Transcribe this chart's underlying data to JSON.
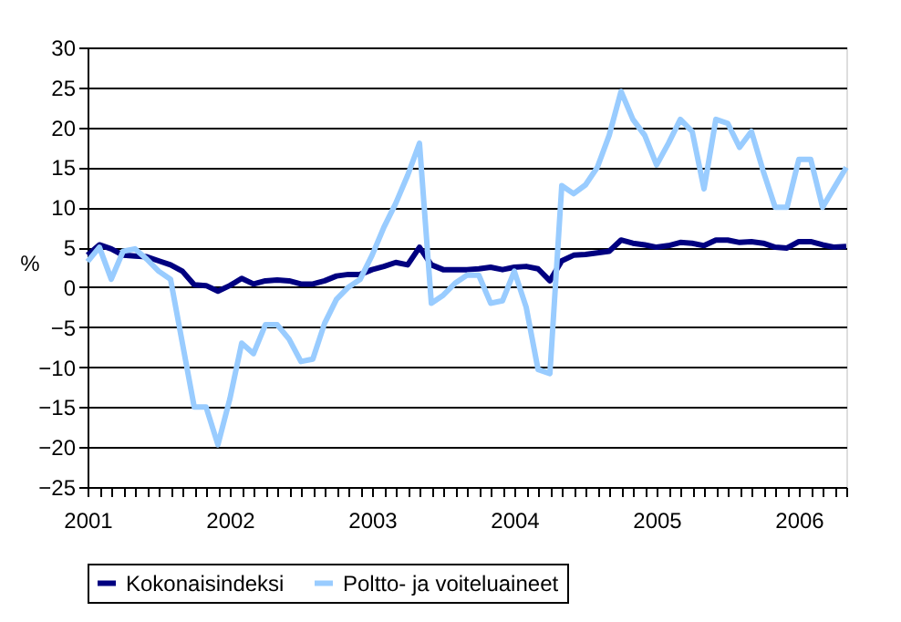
{
  "chart_data": {
    "type": "line",
    "ylabel": "%",
    "categories": [
      "2001",
      null,
      null,
      null,
      null,
      null,
      null,
      null,
      null,
      null,
      null,
      null,
      "2002",
      null,
      null,
      null,
      null,
      null,
      null,
      null,
      null,
      null,
      null,
      null,
      "2003",
      null,
      null,
      null,
      null,
      null,
      null,
      null,
      null,
      null,
      null,
      null,
      "2004",
      null,
      null,
      null,
      null,
      null,
      null,
      null,
      null,
      null,
      null,
      null,
      "2005",
      null,
      null,
      null,
      null,
      null,
      null,
      null,
      null,
      null,
      null,
      null,
      "2006",
      null,
      null,
      null,
      null
    ],
    "series": [
      {
        "name": "Kokonaisindeksi",
        "color": "#000080",
        "values": [
          4,
          5.3,
          4.8,
          4,
          3.9,
          3.8,
          3.3,
          2.8,
          2,
          0.3,
          0.2,
          -0.5,
          0.2,
          1.1,
          0.4,
          0.8,
          0.9,
          0.8,
          0.4,
          0.4,
          0.8,
          1.4,
          1.6,
          1.6,
          2.2,
          2.6,
          3.1,
          2.8,
          5,
          2.8,
          2.2,
          2.2,
          2.2,
          2.3,
          2.5,
          2.2,
          2.5,
          2.6,
          2.3,
          0.8,
          3.3,
          4,
          4.1,
          4.3,
          4.5,
          5.9,
          5.5,
          5.3,
          5,
          5.2,
          5.6,
          5.5,
          5.2,
          5.9,
          5.9,
          5.6,
          5.7,
          5.5,
          5,
          4.9,
          5.7,
          5.7,
          5.3,
          5,
          5.1
        ]
      },
      {
        "name": "Poltto- ja voiteluaineet",
        "color": "#99ccff",
        "values": [
          3.2,
          5,
          1,
          4.5,
          4.8,
          3.5,
          2,
          1,
          -7,
          -15,
          -15,
          -19.7,
          -14,
          -7,
          -8.3,
          -4.7,
          -4.7,
          -6.5,
          -9.3,
          -9,
          -4.5,
          -1.5,
          0,
          1,
          4,
          7.5,
          10.5,
          14,
          18,
          -2,
          -1,
          0.5,
          1.5,
          1.5,
          -2,
          -1.7,
          2,
          -2.5,
          -10.3,
          -10.8,
          12.7,
          11.7,
          12.8,
          15,
          19,
          24.5,
          21,
          19,
          15.3,
          18,
          21,
          19.5,
          12.3,
          21,
          20.5,
          17.5,
          19.5,
          14.5,
          10,
          10,
          16,
          16,
          10,
          12.5,
          15
        ]
      }
    ],
    "ylim": [
      -25,
      30
    ],
    "yticks": [
      -25,
      -20,
      -15,
      -10,
      -5,
      0,
      5,
      10,
      15,
      20,
      25,
      30
    ],
    "grid": "y",
    "legend": "bottom",
    "line_style": "solid",
    "marker": "none"
  }
}
